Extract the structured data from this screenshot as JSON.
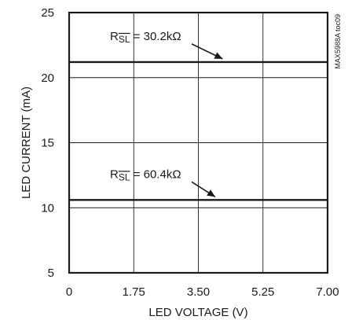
{
  "chart_data": {
    "type": "line",
    "xlabel": "LED VOLTAGE (V)",
    "ylabel": "LED CURRENT (mA)",
    "xlim": [
      0,
      7
    ],
    "ylim": [
      5,
      25
    ],
    "x_ticks": [
      "0",
      "1.75",
      "3.50",
      "5.25",
      "7.00"
    ],
    "x_tick_values": [
      0,
      1.75,
      3.5,
      5.25,
      7.0
    ],
    "y_ticks": [
      "5",
      "10",
      "15",
      "20",
      "25"
    ],
    "y_tick_values": [
      5,
      10,
      15,
      20,
      25
    ],
    "grid": true,
    "watermark": "MAX5988A toc09",
    "series": [
      {
        "label_prefix": "R",
        "label_sub": "SL",
        "label_value": " = 30.2kΩ",
        "x": [
          0,
          7
        ],
        "y": [
          21.2,
          21.2
        ],
        "annotation_at_x": 4.2
      },
      {
        "label_prefix": "R",
        "label_sub": "SL",
        "label_value": " = 60.4kΩ",
        "x": [
          0,
          7
        ],
        "y": [
          10.6,
          10.6
        ],
        "annotation_at_x": 4.0
      }
    ],
    "colors": {
      "line": "#1a1a1a",
      "grid": "#1a1a1a",
      "background": "#ffffff"
    }
  }
}
